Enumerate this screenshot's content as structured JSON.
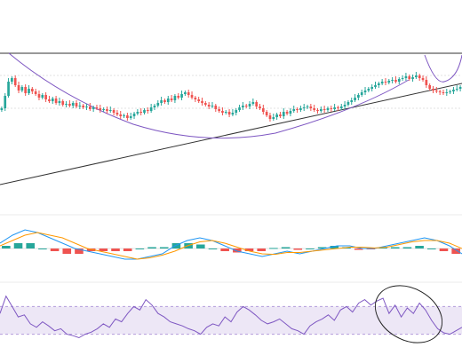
{
  "colors": {
    "up": "#26a69a",
    "down": "#ef5350",
    "trend_line": "#333333",
    "arc": "#7e57c2",
    "macd_line": "#2196f3",
    "signal_line": "#ff9800",
    "rsi_line": "#7e57c2",
    "rsi_band": "#ede7f6",
    "grid": "#e0e0e0",
    "separator": "#ebebeb"
  },
  "chart_data": [
    {
      "type": "candlestick",
      "panel": "price",
      "ylim": [
        0,
        100
      ],
      "close": [
        38,
        52,
        68,
        72,
        64,
        58,
        62,
        55,
        60,
        57,
        54,
        50,
        53,
        48,
        46,
        49,
        44,
        46,
        42,
        43,
        41,
        44,
        40,
        41,
        39,
        40,
        37,
        39,
        38,
        36,
        37,
        35,
        36,
        33,
        31,
        29,
        30,
        27,
        29,
        32,
        34,
        33,
        36,
        35,
        39,
        41,
        44,
        47,
        45,
        49,
        47,
        52,
        50,
        54,
        56,
        53,
        50,
        48,
        46,
        44,
        42,
        40,
        41,
        37,
        35,
        33,
        34,
        31,
        33,
        36,
        39,
        41,
        40,
        43,
        45,
        40,
        38,
        34,
        30,
        26,
        28,
        31,
        29,
        34,
        32,
        35,
        37,
        36,
        38,
        39,
        40,
        38,
        36,
        35,
        37,
        36,
        38,
        37,
        39,
        38,
        40,
        42,
        45,
        47,
        50,
        53,
        56,
        58,
        60,
        62,
        64,
        66,
        68,
        67,
        69,
        70,
        68,
        71,
        72,
        74,
        71,
        73,
        75,
        72,
        70,
        64,
        60,
        58,
        57,
        56,
        55,
        56,
        57,
        59,
        60,
        62
      ]
    },
    {
      "type": "line",
      "panel": "macd",
      "ylim": [
        -10,
        10
      ],
      "series": [
        {
          "values": [
            2,
            5,
            7,
            6,
            4,
            2,
            0,
            -1,
            -2,
            -3,
            -4,
            -4,
            -3,
            -2,
            1,
            3,
            4,
            3,
            1,
            -1,
            -2,
            -3,
            -2,
            -1,
            -2,
            -1,
            0,
            1,
            1,
            0,
            0,
            1,
            2,
            3,
            4,
            3,
            1,
            -2
          ]
        },
        {
          "values": [
            1,
            3,
            5,
            6,
            5,
            4,
            2,
            0,
            -1,
            -2,
            -3,
            -4,
            -3.5,
            -2.5,
            -1,
            1,
            2.5,
            3,
            2,
            0.5,
            -1,
            -2,
            -2.2,
            -1.5,
            -1.5,
            -1,
            -0.5,
            0,
            0.5,
            0.5,
            0.2,
            0.5,
            1.5,
            2.5,
            3,
            3,
            2,
            0
          ]
        }
      ],
      "histogram": [
        1,
        2,
        2,
        0,
        -1,
        -2,
        -2,
        -1,
        -1,
        -1,
        -1,
        0,
        0.5,
        0.5,
        2,
        2,
        1.5,
        0,
        -1,
        -1.5,
        -1,
        -1,
        0.2,
        0.5,
        -0.5,
        0,
        0.5,
        1,
        0.5,
        -0.5,
        -0.2,
        0.5,
        0.5,
        0.5,
        1,
        0,
        -1,
        -2
      ]
    },
    {
      "type": "line",
      "panel": "rsi",
      "ylim": [
        0,
        100
      ],
      "values": [
        60,
        85,
        70,
        55,
        58,
        45,
        40,
        48,
        42,
        35,
        38,
        30,
        28,
        25,
        30,
        33,
        38,
        45,
        40,
        52,
        48,
        60,
        70,
        65,
        80,
        72,
        60,
        55,
        48,
        45,
        42,
        38,
        35,
        30,
        40,
        45,
        42,
        55,
        48,
        62,
        70,
        65,
        58,
        50,
        45,
        48,
        52,
        45,
        38,
        35,
        30,
        42,
        48,
        52,
        58,
        50,
        65,
        70,
        62,
        75,
        80,
        72,
        78,
        82,
        60,
        72,
        55,
        68,
        60,
        75,
        65,
        50,
        38,
        32,
        30,
        35,
        40
      ]
    }
  ]
}
